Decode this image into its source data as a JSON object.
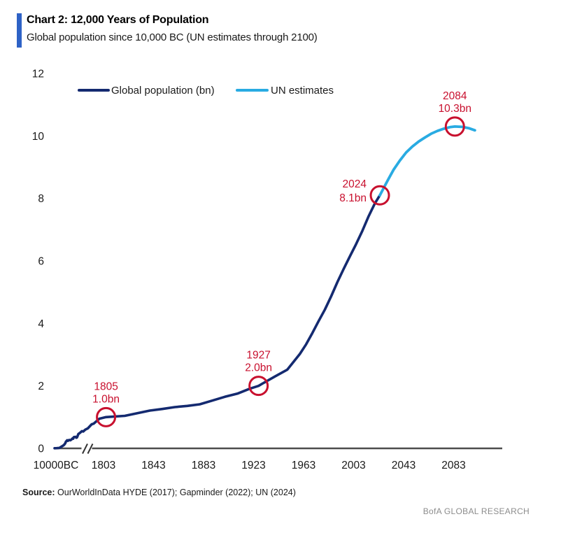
{
  "header": {
    "title": "Chart 2: 12,000 Years of Population",
    "subtitle": "Global population since 10,000 BC (UN estimates through 2100)"
  },
  "colors": {
    "accent_bar_blue": "#2e62c6",
    "navy": "#142a70",
    "light_blue": "#29abe2",
    "annotation_red": "#c8102e",
    "axis_gray": "#4d4d4d",
    "text_dark": "#1a1a1a"
  },
  "chart_data": {
    "type": "line",
    "title": "Chart 2: 12,000 Years of Population",
    "subtitle": "Global population since 10,000 BC (UN estimates through 2100)",
    "ylabel": "",
    "xlabel": "",
    "ylim": [
      0,
      12
    ],
    "grid": false,
    "axis_break_before": "1803",
    "x_ticks": [
      "10000BC",
      "1803",
      "1843",
      "1883",
      "1923",
      "1963",
      "2003",
      "2043",
      "2083"
    ],
    "y_ticks": [
      "0",
      "2",
      "4",
      "6",
      "8",
      "10",
      "12"
    ],
    "legend": [
      {
        "label": "Global population (bn)",
        "color": "#142a70"
      },
      {
        "label": "UN estimates",
        "color": "#29abe2"
      }
    ],
    "series": [
      {
        "name": "Global population (bn)",
        "color": "#142a70",
        "points": [
          [
            -10000,
            0.004
          ],
          [
            -8000,
            0.007
          ],
          [
            -7000,
            0.009
          ],
          [
            -6000,
            0.012
          ],
          [
            -5000,
            0.019
          ],
          [
            -4000,
            0.028
          ],
          [
            -3000,
            0.045
          ],
          [
            -2000,
            0.072
          ],
          [
            -1500,
            0.09
          ],
          [
            -1000,
            0.11
          ],
          [
            -500,
            0.16
          ],
          [
            -200,
            0.22
          ],
          [
            1,
            0.23
          ],
          [
            200,
            0.26
          ],
          [
            400,
            0.24
          ],
          [
            600,
            0.27
          ],
          [
            800,
            0.26
          ],
          [
            1000,
            0.28
          ],
          [
            1100,
            0.32
          ],
          [
            1150,
            0.31
          ],
          [
            1200,
            0.36
          ],
          [
            1300,
            0.37
          ],
          [
            1350,
            0.34
          ],
          [
            1400,
            0.35
          ],
          [
            1450,
            0.4
          ],
          [
            1500,
            0.46
          ],
          [
            1550,
            0.5
          ],
          [
            1600,
            0.55
          ],
          [
            1650,
            0.54
          ],
          [
            1700,
            0.6
          ],
          [
            1720,
            0.64
          ],
          [
            1750,
            0.77
          ],
          [
            1760,
            0.79
          ],
          [
            1775,
            0.87
          ],
          [
            1790,
            0.95
          ],
          [
            1805,
            1.0
          ],
          [
            1820,
            1.04
          ],
          [
            1840,
            1.21
          ],
          [
            1850,
            1.26
          ],
          [
            1860,
            1.32
          ],
          [
            1870,
            1.36
          ],
          [
            1880,
            1.41
          ],
          [
            1890,
            1.53
          ],
          [
            1900,
            1.65
          ],
          [
            1910,
            1.75
          ],
          [
            1920,
            1.91
          ],
          [
            1927,
            2.0
          ],
          [
            1930,
            2.07
          ],
          [
            1940,
            2.3
          ],
          [
            1950,
            2.52
          ],
          [
            1955,
            2.77
          ],
          [
            1960,
            3.02
          ],
          [
            1965,
            3.33
          ],
          [
            1970,
            3.69
          ],
          [
            1975,
            4.07
          ],
          [
            1980,
            4.44
          ],
          [
            1985,
            4.86
          ],
          [
            1990,
            5.32
          ],
          [
            1995,
            5.74
          ],
          [
            2000,
            6.14
          ],
          [
            2005,
            6.54
          ],
          [
            2010,
            6.96
          ],
          [
            2015,
            7.43
          ],
          [
            2020,
            7.84
          ],
          [
            2024,
            8.1
          ]
        ]
      },
      {
        "name": "UN estimates",
        "color": "#29abe2",
        "points": [
          [
            2024,
            8.1
          ],
          [
            2030,
            8.56
          ],
          [
            2035,
            8.92
          ],
          [
            2040,
            9.21
          ],
          [
            2045,
            9.47
          ],
          [
            2050,
            9.66
          ],
          [
            2055,
            9.82
          ],
          [
            2060,
            9.95
          ],
          [
            2065,
            10.07
          ],
          [
            2070,
            10.16
          ],
          [
            2075,
            10.23
          ],
          [
            2080,
            10.28
          ],
          [
            2084,
            10.3
          ],
          [
            2090,
            10.29
          ],
          [
            2095,
            10.25
          ],
          [
            2100,
            10.18
          ]
        ]
      }
    ],
    "annotations": [
      {
        "year": 1805,
        "value": 1.0,
        "label_line1": "1805",
        "label_line2": "1.0bn",
        "placement": "above"
      },
      {
        "year": 1927,
        "value": 2.0,
        "label_line1": "1927",
        "label_line2": "2.0bn",
        "placement": "above"
      },
      {
        "year": 2024,
        "value": 8.1,
        "label_line1": "2024",
        "label_line2": "8.1bn",
        "placement": "left"
      },
      {
        "year": 2084,
        "value": 10.3,
        "label_line1": "2084",
        "label_line2": "10.3bn",
        "placement": "above"
      }
    ]
  },
  "footer": {
    "source_label": "Source:",
    "source_text": " OurWorldInData HYDE (2017); Gapminder (2022); UN (2024)",
    "brand": "BofA GLOBAL RESEARCH"
  }
}
